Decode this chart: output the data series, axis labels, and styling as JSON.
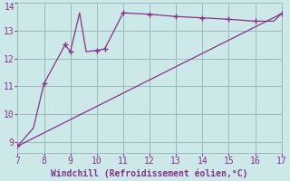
{
  "line1_x": [
    7,
    7.6,
    8,
    8.8,
    9.0,
    9.35,
    9.6,
    10.0,
    10.3,
    11,
    12,
    13,
    14,
    15,
    16,
    16.7,
    17
  ],
  "line1_y": [
    8.85,
    9.5,
    11.1,
    12.5,
    12.25,
    13.65,
    12.25,
    12.3,
    12.35,
    13.65,
    13.6,
    13.52,
    13.47,
    13.42,
    13.35,
    13.35,
    13.62
  ],
  "line2_x": [
    7,
    17
  ],
  "line2_y": [
    8.85,
    13.62
  ],
  "marker_x": [
    7,
    8,
    8.8,
    9.0,
    10.0,
    10.3,
    11,
    12,
    13,
    14,
    15,
    16,
    17
  ],
  "marker_y": [
    8.85,
    11.1,
    12.5,
    12.25,
    12.3,
    12.35,
    13.65,
    13.6,
    13.52,
    13.47,
    13.42,
    13.35,
    13.62
  ],
  "line_color": "#883388",
  "bg_color": "#cce8e8",
  "grid_color": "#99bbbb",
  "xlabel": "Windchill (Refroidissement éolien,°C)",
  "xlim": [
    7,
    17
  ],
  "ylim": [
    8.6,
    14.0
  ],
  "xticks": [
    7,
    8,
    9,
    10,
    11,
    12,
    13,
    14,
    15,
    16,
    17
  ],
  "yticks": [
    9,
    10,
    11,
    12,
    13,
    14
  ],
  "ytick_labels": [
    "9",
    "10",
    "11",
    "12",
    "13",
    ""
  ],
  "xlabel_color": "#883388",
  "tick_color": "#883388",
  "font_size": 7.0
}
